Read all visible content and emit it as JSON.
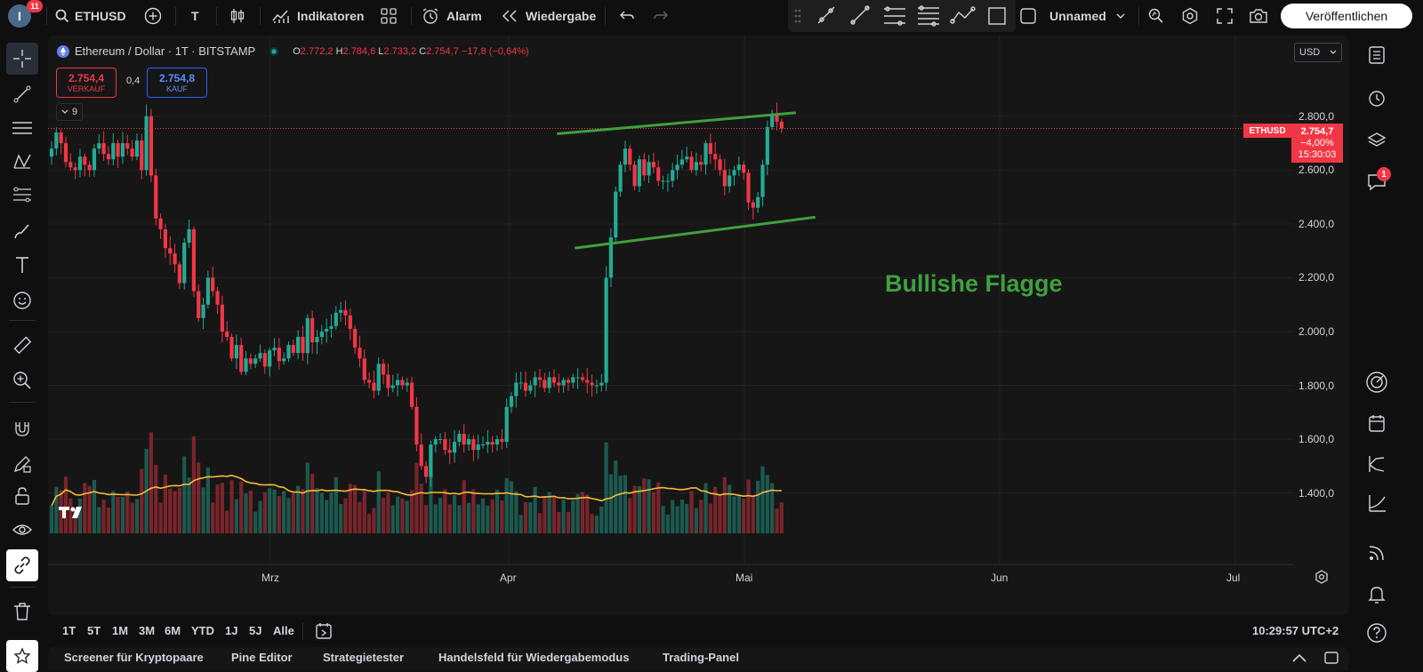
{
  "topbar": {
    "notif_count": "11",
    "avatar_letter": "I",
    "symbol": "ETHUSD",
    "text_tool": "T",
    "indicators": "Indikatoren",
    "alarm": "Alarm",
    "replay": "Wiedergabe",
    "layout_name": "Unnamed",
    "publish": "Veröffentlichen"
  },
  "legend": {
    "title": "Ethereum / Dollar · 1T · BITSTAMP",
    "o_label": "O",
    "o": "2.772,2",
    "h_label": "H",
    "h": "2.784,6",
    "l_label": "L",
    "l": "2.733,2",
    "c_label": "C",
    "c": "2.754,7",
    "change": "−17,8 (−0,64%)",
    "sell_price": "2.754,4",
    "sell_label": "VERKAUF",
    "spread": "0,4",
    "buy_price": "2.754,8",
    "buy_label": "KAUF",
    "indicator_count": "9"
  },
  "axis": {
    "currency": "USD",
    "y_ticks": [
      "2.800,0",
      "2.600,0",
      "2.400,0",
      "2.200,0",
      "2.000,0",
      "1.800,0",
      "1.600,0",
      "1.400,0"
    ],
    "x_ticks": [
      "Mrz",
      "Apr",
      "Mai",
      "Jun",
      "Jul"
    ],
    "price_tag_symbol": "ETHUSD",
    "price_tag_value": "2.754,7",
    "price_tag_change": "−4,00%",
    "price_tag_countdown": "15:30:03"
  },
  "annotation": {
    "text": "Bullishe Flagge",
    "color": "#3fa03f"
  },
  "timeframes": [
    "1T",
    "5T",
    "1M",
    "3M",
    "6M",
    "YTD",
    "1J",
    "5J",
    "Alle"
  ],
  "clock": "10:29:57 UTC+2",
  "bottom_tabs": [
    "Screener für Kryptopaare",
    "Pine Editor",
    "Strategietester",
    "Handelsfeld für Wiedergabemodus",
    "Trading-Panel"
  ],
  "right_sidebar": {
    "chat_badge": "1"
  },
  "colors": {
    "up": "#22ab94",
    "down": "#f23645",
    "ma": "#f5b93a",
    "flag": "#3fa03f"
  },
  "chart_data": {
    "type": "candlestick",
    "symbol": "ETHUSD",
    "x_axis": {
      "labels": [
        "Mrz",
        "Apr",
        "Mai",
        "Jun",
        "Jul"
      ]
    },
    "y_axis": {
      "range": [
        1250,
        3100
      ],
      "ticks": [
        1400,
        1600,
        1800,
        2000,
        2200,
        2400,
        2600,
        2800
      ]
    },
    "last_price": 2754.7,
    "ohlc_last": {
      "open": 2772.2,
      "high": 2784.6,
      "low": 2733.2,
      "close": 2754.7
    },
    "closes": [
      2680,
      2740,
      2700,
      2630,
      2610,
      2600,
      2650,
      2620,
      2600,
      2680,
      2700,
      2660,
      2640,
      2700,
      2650,
      2700,
      2680,
      2650,
      2710,
      2600,
      2800,
      2580,
      2420,
      2380,
      2310,
      2290,
      2250,
      2180,
      2330,
      2380,
      2150,
      2050,
      2100,
      2200,
      2150,
      2100,
      2000,
      1980,
      1900,
      1950,
      1850,
      1900,
      1880,
      1900,
      1920,
      1870,
      1930,
      1940,
      1890,
      1900,
      1950,
      1920,
      1980,
      1920,
      2050,
      1960,
      1980,
      2000,
      2010,
      2020,
      2070,
      2080,
      2060,
      2010,
      1940,
      1900,
      1820,
      1810,
      1780,
      1880,
      1840,
      1790,
      1800,
      1820,
      1800,
      1810,
      1720,
      1580,
      1500,
      1460,
      1580,
      1600,
      1600,
      1560,
      1550,
      1590,
      1620,
      1580,
      1600,
      1560,
      1580,
      1580,
      1590,
      1580,
      1600,
      1590,
      1720,
      1760,
      1810,
      1810,
      1780,
      1800,
      1830,
      1820,
      1790,
      1830,
      1810,
      1800,
      1820,
      1810,
      1830,
      1830,
      1820,
      1810,
      1800,
      1800,
      1810,
      2200,
      2350,
      2520,
      2620,
      2680,
      2620,
      2540,
      2640,
      2580,
      2630,
      2610,
      2560,
      2560,
      2560,
      2600,
      2620,
      2640,
      2650,
      2600,
      2630,
      2620,
      2700,
      2660,
      2640,
      2600,
      2540,
      2580,
      2600,
      2620,
      2590,
      2480,
      2460,
      2500,
      2620,
      2760,
      2810,
      2780,
      2754.7
    ],
    "volume_ma_visible": true,
    "annotations": [
      {
        "type": "parallel_channel",
        "label": "Bullishe Flagge"
      }
    ]
  }
}
